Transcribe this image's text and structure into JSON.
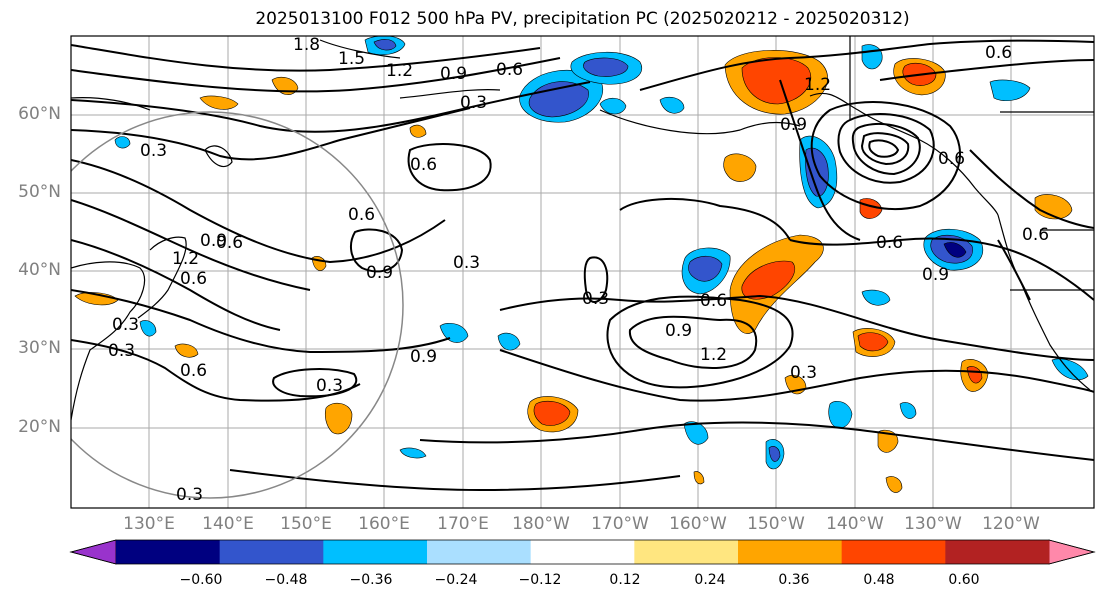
{
  "title": "2025013100 F012 500 hPa PV, precipitation PC (2025020212 - 2025020312)",
  "lat_labels": [
    "60°N",
    "50°N",
    "40°N",
    "30°N",
    "20°N"
  ],
  "lon_labels": [
    "130°E",
    "140°E",
    "150°E",
    "160°E",
    "170°E",
    "180°W",
    "170°W",
    "160°W",
    "150°W",
    "140°W",
    "130°W",
    "120°W"
  ],
  "contour_labels": [
    "1.8",
    "1.5",
    "1.2",
    "0.9",
    "0.6",
    "0.3",
    "0.3",
    "0.6",
    "0.3",
    "0.6",
    "0.9",
    "1.2",
    "0.6",
    "0.6",
    "0.9",
    "0.3",
    "0.3",
    "0.6",
    "0.9",
    "0.3",
    "0.6",
    "0.9",
    "1.2",
    "0.3",
    "0.3",
    "0.6",
    "0.9",
    "0.6",
    "0.3",
    "0.6",
    "1.2",
    "0.6",
    "0.9"
  ],
  "colorbar": {
    "ticks": [
      "−0.60",
      "−0.48",
      "−0.36",
      "−0.24",
      "−0.12",
      "0.12",
      "0.24",
      "0.36",
      "0.48",
      "0.60"
    ],
    "colors": [
      "#9933cc",
      "#000080",
      "#3355cc",
      "#00bfff",
      "#aadfff",
      "#ffffff",
      "#ffe680",
      "#ffa500",
      "#ff4500",
      "#b22222",
      "#ff88aa"
    ]
  }
}
